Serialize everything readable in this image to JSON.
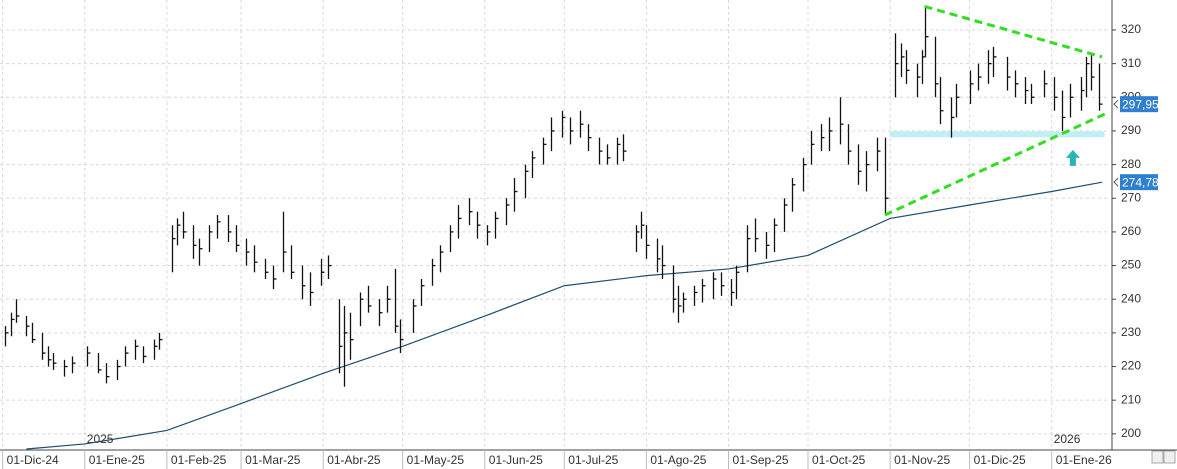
{
  "chart_data": {
    "type": "hlc",
    "xlim": [
      "2024-11-30",
      "2026-01-23"
    ],
    "ylim": [
      195.2,
      328.9
    ],
    "yticks": [
      200,
      210,
      220,
      230,
      240,
      250,
      260,
      270,
      280,
      290,
      300,
      310,
      320
    ],
    "xticks": [
      {
        "value": "2024-12-01",
        "label": "01-Dic-24"
      },
      {
        "value": "2025-01-01",
        "label": "01-Ene-25"
      },
      {
        "value": "2025-02-01",
        "label": "01-Feb-25"
      },
      {
        "value": "2025-03-01",
        "label": "01-Mar-25"
      },
      {
        "value": "2025-04-01",
        "label": "01-Abr-25"
      },
      {
        "value": "2025-05-01",
        "label": "01-May-25"
      },
      {
        "value": "2025-06-01",
        "label": "01-Jun-25"
      },
      {
        "value": "2025-07-01",
        "label": "01-Jul-25"
      },
      {
        "value": "2025-08-01",
        "label": "01-Ago-25"
      },
      {
        "value": "2025-09-01",
        "label": "01-Sep-25"
      },
      {
        "value": "2025-10-01",
        "label": "01-Oct-25"
      },
      {
        "value": "2025-11-01",
        "label": "01-Nov-25"
      },
      {
        "value": "2025-12-01",
        "label": "01-Dic-25"
      },
      {
        "value": "2026-01-01",
        "label": "01-Ene-26"
      }
    ],
    "grid": true,
    "year_labels": [
      {
        "x": "2025-01-01",
        "label": "2025"
      },
      {
        "x": "2026-01-01",
        "label": "2026"
      }
    ],
    "bars": {
      "color": "#111111",
      "x": [
        "2024-12-02",
        "2024-12-04",
        "2024-12-06",
        "2024-12-10",
        "2024-12-12",
        "2024-12-16",
        "2024-12-18",
        "2024-12-20",
        "2024-12-24",
        "2024-12-27",
        "2025-01-02",
        "2025-01-06",
        "2025-01-09",
        "2025-01-13",
        "2025-01-16",
        "2025-01-20",
        "2025-01-23",
        "2025-01-27",
        "2025-01-29",
        "2025-02-03",
        "2025-02-05",
        "2025-02-07",
        "2025-02-11",
        "2025-02-13",
        "2025-02-17",
        "2025-02-20",
        "2025-02-24",
        "2025-02-27",
        "2025-03-03",
        "2025-03-06",
        "2025-03-10",
        "2025-03-13",
        "2025-03-17",
        "2025-03-20",
        "2025-03-24",
        "2025-03-27",
        "2025-03-31",
        "2025-04-03",
        "2025-04-07",
        "2025-04-09",
        "2025-04-11",
        "2025-04-15",
        "2025-04-18",
        "2025-04-22",
        "2025-04-25",
        "2025-04-28",
        "2025-04-30",
        "2025-05-05",
        "2025-05-08",
        "2025-05-12",
        "2025-05-15",
        "2025-05-19",
        "2025-05-22",
        "2025-05-26",
        "2025-05-29",
        "2025-06-02",
        "2025-06-05",
        "2025-06-09",
        "2025-06-12",
        "2025-06-16",
        "2025-06-19",
        "2025-06-23",
        "2025-06-26",
        "2025-06-30",
        "2025-07-03",
        "2025-07-07",
        "2025-07-10",
        "2025-07-14",
        "2025-07-17",
        "2025-07-21",
        "2025-07-23",
        "2025-07-28",
        "2025-07-30",
        "2025-08-01",
        "2025-08-05",
        "2025-08-07",
        "2025-08-11",
        "2025-08-13",
        "2025-08-15",
        "2025-08-19",
        "2025-08-22",
        "2025-08-26",
        "2025-08-29",
        "2025-09-02",
        "2025-09-04",
        "2025-09-08",
        "2025-09-11",
        "2025-09-15",
        "2025-09-18",
        "2025-09-22",
        "2025-09-25",
        "2025-09-29",
        "2025-10-02",
        "2025-10-06",
        "2025-10-09",
        "2025-10-13",
        "2025-10-16",
        "2025-10-20",
        "2025-10-23",
        "2025-10-27",
        "2025-10-30",
        "2025-11-03",
        "2025-11-05",
        "2025-11-07",
        "2025-11-11",
        "2025-11-13",
        "2025-11-14",
        "2025-11-18",
        "2025-11-20",
        "2025-11-24",
        "2025-11-26",
        "2025-12-01",
        "2025-12-04",
        "2025-12-08",
        "2025-12-10",
        "2025-12-15",
        "2025-12-18",
        "2025-12-22",
        "2025-12-24",
        "2025-12-29",
        "2026-01-02",
        "2026-01-05",
        "2026-01-08",
        "2026-01-12",
        "2026-01-14",
        "2026-01-16",
        "2026-01-19"
      ],
      "high": [
        232,
        236,
        240,
        235,
        233,
        230,
        226,
        224,
        222,
        223,
        226,
        224,
        221,
        222,
        226,
        228,
        226,
        228,
        230,
        262,
        264,
        266,
        262,
        258,
        262,
        265,
        265,
        262,
        258,
        256,
        252,
        250,
        266,
        256,
        250,
        248,
        252,
        253,
        240,
        238,
        236,
        242,
        244,
        240,
        244,
        249,
        234,
        240,
        246,
        252,
        256,
        262,
        268,
        270,
        266,
        262,
        266,
        270,
        276,
        280,
        284,
        288,
        294,
        296,
        294,
        296,
        292,
        288,
        286,
        288,
        289,
        262,
        266,
        262,
        258,
        256,
        250,
        244,
        242,
        244,
        246,
        248,
        248,
        246,
        250,
        262,
        264,
        260,
        264,
        270,
        276,
        282,
        290,
        292,
        294,
        300,
        292,
        286,
        284,
        288,
        288,
        319,
        316,
        314,
        310,
        314,
        327,
        318,
        306,
        300,
        304,
        308,
        310,
        314,
        315,
        312,
        308,
        306,
        304,
        308,
        306,
        302,
        304,
        306,
        312,
        313,
        310
      ],
      "low": [
        226,
        229,
        233,
        229,
        227,
        222,
        220,
        219,
        217,
        218,
        220,
        218,
        215,
        216,
        220,
        222,
        221,
        222,
        225,
        248,
        256,
        258,
        252,
        250,
        254,
        258,
        257,
        254,
        250,
        248,
        246,
        243,
        248,
        246,
        240,
        238,
        244,
        246,
        218,
        214,
        222,
        232,
        236,
        232,
        236,
        230,
        224,
        230,
        238,
        244,
        248,
        254,
        258,
        262,
        258,
        256,
        258,
        262,
        266,
        270,
        276,
        280,
        284,
        288,
        286,
        288,
        284,
        280,
        280,
        280,
        281,
        254,
        258,
        252,
        248,
        246,
        236,
        233,
        236,
        238,
        239,
        240,
        241,
        238,
        240,
        248,
        254,
        252,
        254,
        260,
        266,
        272,
        280,
        284,
        284,
        286,
        280,
        274,
        272,
        278,
        265,
        300,
        306,
        304,
        300,
        304,
        312,
        300,
        292,
        288,
        294,
        298,
        302,
        304,
        306,
        302,
        300,
        298,
        298,
        300,
        296,
        290,
        294,
        296,
        300,
        302,
        296
      ],
      "close": [
        230,
        234,
        235,
        232,
        228,
        224,
        222,
        221,
        220,
        221,
        224,
        219,
        217,
        220,
        224,
        226,
        223,
        226,
        228,
        258,
        262,
        260,
        256,
        255,
        260,
        263,
        260,
        256,
        254,
        251,
        248,
        246,
        254,
        248,
        244,
        242,
        248,
        250,
        226,
        230,
        228,
        240,
        238,
        236,
        240,
        232,
        228,
        238,
        244,
        250,
        254,
        260,
        264,
        266,
        262,
        260,
        264,
        268,
        272,
        278,
        282,
        286,
        290,
        294,
        290,
        292,
        288,
        284,
        282,
        286,
        284,
        260,
        262,
        256,
        252,
        250,
        240,
        238,
        240,
        242,
        244,
        246,
        244,
        242,
        248,
        258,
        258,
        256,
        262,
        268,
        274,
        280,
        286,
        288,
        290,
        292,
        284,
        278,
        280,
        284,
        270,
        310,
        312,
        308,
        306,
        312,
        318,
        304,
        296,
        294,
        300,
        304,
        306,
        310,
        312,
        306,
        304,
        302,
        300,
        304,
        300,
        294,
        300,
        302,
        310,
        306,
        297.95
      ]
    },
    "moving_average": {
      "color": "#1f4e6e",
      "x": [
        "2024-12-10",
        "2025-01-01",
        "2025-02-01",
        "2025-03-01",
        "2025-04-01",
        "2025-05-01",
        "2025-06-01",
        "2025-07-01",
        "2025-08-01",
        "2025-09-01",
        "2025-10-01",
        "2025-11-01",
        "2025-12-01",
        "2026-01-01",
        "2026-01-20"
      ],
      "values": [
        195.5,
        197,
        201,
        209,
        218,
        226,
        235,
        244,
        247,
        249,
        253,
        264,
        268,
        272,
        274.78
      ]
    },
    "price_labels": [
      {
        "value": 297.95,
        "label": "297,95"
      },
      {
        "value": 274.78,
        "label": "274,78"
      }
    ],
    "price_label_color": "#2f7fd1",
    "trendlines": [
      {
        "x": [
          "2025-11-14",
          "2026-01-20"
        ],
        "y": [
          327,
          312
        ],
        "color": "#33dd22"
      },
      {
        "x": [
          "2025-10-30",
          "2026-01-21"
        ],
        "y": [
          265,
          295
        ],
        "color": "#33dd22"
      }
    ],
    "support_band": {
      "x": [
        "2025-11-01",
        "2026-01-21"
      ],
      "y": 289,
      "color": "#bfeff5"
    },
    "arrow": {
      "x": "2026-01-09",
      "y": 282,
      "color": "#2ab5b5"
    }
  }
}
